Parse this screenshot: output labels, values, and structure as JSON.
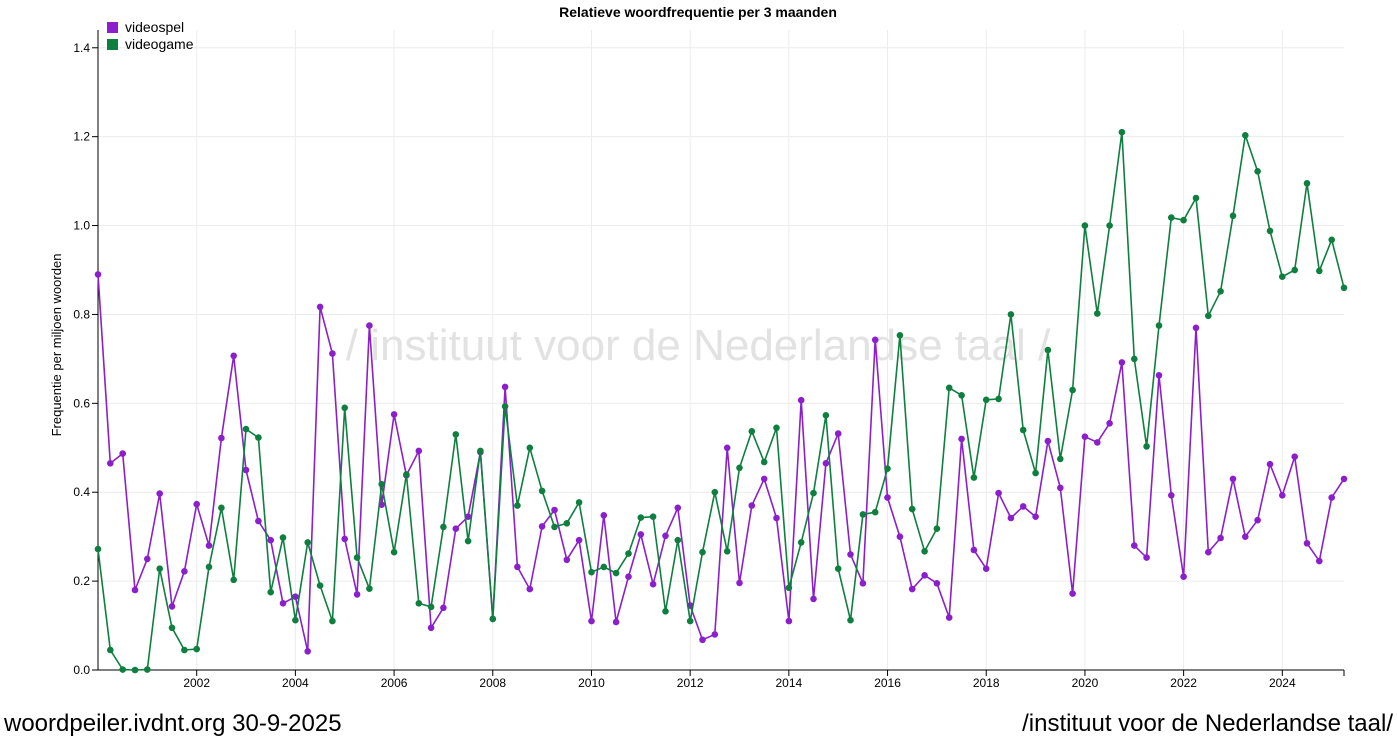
{
  "footer": {
    "left": "woordpeiler.ivdnt.org 30-9-2025",
    "right": "/instituut voor de Nederlandse taal/"
  },
  "watermark": "/ instituut voor de Nederlandse taal /",
  "chart_data": {
    "type": "line",
    "title": "Relatieve woordfrequentie per 3 maanden",
    "xlabel": "",
    "ylabel": "Frequentie per miljoen woorden",
    "xlim": [
      2000.0,
      2025.25
    ],
    "ylim": [
      0,
      1.44
    ],
    "x_ticks": [
      "2002",
      "2004",
      "2006",
      "2008",
      "2010",
      "2012",
      "2014",
      "2016",
      "2018",
      "2020",
      "2022",
      "2024"
    ],
    "y_ticks": [
      "0.0",
      "0.2",
      "0.4",
      "0.6",
      "0.8",
      "1.0",
      "1.2",
      "1.4"
    ],
    "grid": true,
    "legend_position": "top-left",
    "x_start": "2000-Q1",
    "x_step": "3 maanden",
    "series": [
      {
        "name": "videospel",
        "color": "#8b1fcc",
        "values": [
          0.89,
          0.465,
          0.487,
          0.18,
          0.25,
          0.397,
          0.143,
          0.222,
          0.373,
          0.28,
          0.522,
          0.707,
          0.45,
          0.335,
          0.292,
          0.15,
          0.165,
          0.042,
          0.817,
          0.712,
          0.295,
          0.17,
          0.775,
          0.372,
          0.575,
          0.438,
          0.493,
          0.095,
          0.14,
          0.318,
          0.345,
          0.49,
          0.115,
          0.637,
          0.232,
          0.182,
          0.323,
          0.36,
          0.248,
          0.292,
          0.11,
          0.348,
          0.108,
          0.21,
          0.305,
          0.193,
          0.302,
          0.365,
          0.145,
          0.068,
          0.08,
          0.5,
          0.196,
          0.37,
          0.43,
          0.342,
          0.11,
          0.607,
          0.16,
          0.465,
          0.532,
          0.26,
          0.195,
          0.743,
          0.388,
          0.3,
          0.182,
          0.213,
          0.195,
          0.118,
          0.52,
          0.27,
          0.228,
          0.398,
          0.342,
          0.368,
          0.345,
          0.515,
          0.41,
          0.172,
          0.525,
          0.512,
          0.555,
          0.692,
          0.28,
          0.253,
          0.663,
          0.393,
          0.21,
          0.77,
          0.265,
          0.297,
          0.43,
          0.3,
          0.337,
          0.463,
          0.393,
          0.48,
          0.285,
          0.245,
          0.388,
          0.43
        ]
      },
      {
        "name": "videogame",
        "color": "#0e7f3f",
        "values": [
          0.272,
          0.045,
          0.001,
          0.0,
          0.001,
          0.228,
          0.095,
          0.045,
          0.047,
          0.232,
          0.365,
          0.203,
          0.542,
          0.523,
          0.175,
          0.298,
          0.112,
          0.287,
          0.19,
          0.11,
          0.59,
          0.253,
          0.183,
          0.418,
          0.265,
          0.44,
          0.15,
          0.142,
          0.322,
          0.53,
          0.29,
          0.493,
          0.115,
          0.593,
          0.37,
          0.5,
          0.403,
          0.322,
          0.33,
          0.377,
          0.22,
          0.232,
          0.218,
          0.262,
          0.343,
          0.345,
          0.132,
          0.292,
          0.11,
          0.265,
          0.4,
          0.267,
          0.455,
          0.537,
          0.468,
          0.545,
          0.185,
          0.287,
          0.398,
          0.573,
          0.228,
          0.112,
          0.35,
          0.355,
          0.453,
          0.753,
          0.362,
          0.267,
          0.318,
          0.635,
          0.618,
          0.433,
          0.608,
          0.61,
          0.8,
          0.54,
          0.443,
          0.72,
          0.475,
          0.63,
          1.0,
          0.802,
          1.0,
          1.21,
          0.7,
          0.503,
          0.775,
          1.018,
          1.012,
          1.062,
          0.797,
          0.852,
          1.022,
          1.203,
          1.122,
          0.988,
          0.885,
          0.9,
          1.095,
          0.898,
          0.968,
          0.86
        ]
      }
    ]
  }
}
